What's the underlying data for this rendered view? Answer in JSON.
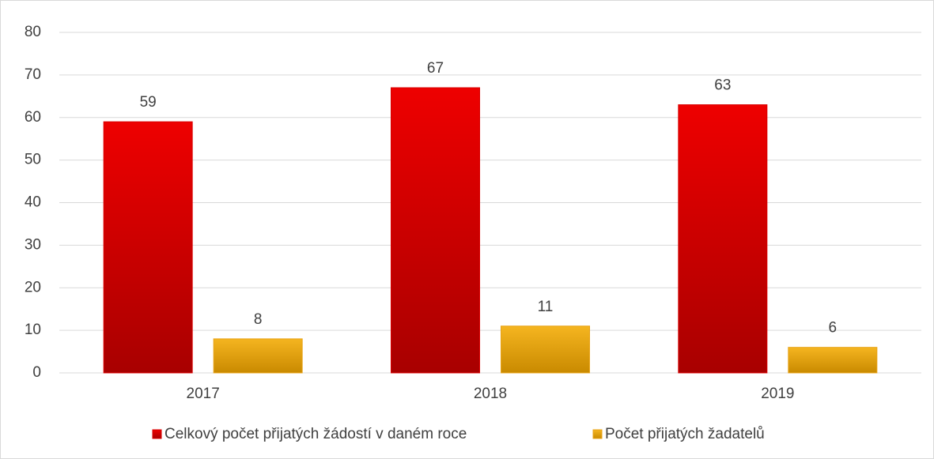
{
  "chart_data": {
    "type": "bar",
    "categories": [
      "2017",
      "2018",
      "2019"
    ],
    "series": [
      {
        "name": "Celkový počet přijatých žádostí v daném roce",
        "color": "#d90000",
        "values": [
          59,
          67,
          63
        ]
      },
      {
        "name": "Počet přijatých žadatelů",
        "color": "#e8a317",
        "values": [
          8,
          11,
          6
        ]
      }
    ],
    "ylim": [
      0,
      80
    ],
    "yticks": [
      0,
      10,
      20,
      30,
      40,
      50,
      60,
      70,
      80
    ],
    "grid": true,
    "data_labels": true,
    "legend": "bottom"
  }
}
